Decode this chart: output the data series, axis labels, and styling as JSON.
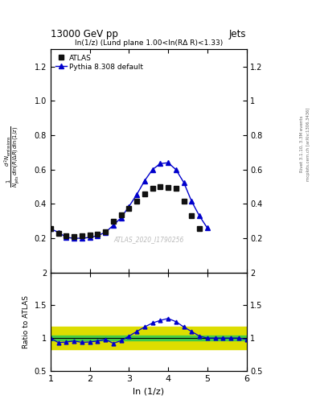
{
  "title_top": "13000 GeV pp",
  "title_right": "Jets",
  "subplot_title": "ln(1/z) (Lund plane 1.00<ln(RΔ R)<1.33)",
  "watermark": "ATLAS_2020_I1790256",
  "xlabel": "ln (1/z)",
  "ylabel_ratio": "Ratio to ATLAS",
  "right_label": "Rivet 3.1.10, 3.3M events",
  "right_label2": "mcplots.cern.ch [arXiv:1306.3436]",
  "atlas_x": [
    1.0,
    1.2,
    1.4,
    1.6,
    1.8,
    2.0,
    2.2,
    2.4,
    2.6,
    2.8,
    3.0,
    3.2,
    3.4,
    3.6,
    3.8,
    4.0,
    4.2,
    4.4,
    4.6,
    4.8
  ],
  "atlas_y": [
    0.255,
    0.23,
    0.215,
    0.21,
    0.215,
    0.22,
    0.225,
    0.24,
    0.3,
    0.335,
    0.375,
    0.415,
    0.46,
    0.49,
    0.5,
    0.495,
    0.49,
    0.415,
    0.33,
    0.255
  ],
  "pythia_x": [
    1.0,
    1.2,
    1.4,
    1.6,
    1.8,
    2.0,
    2.2,
    2.4,
    2.6,
    2.8,
    3.0,
    3.2,
    3.4,
    3.6,
    3.8,
    4.0,
    4.2,
    4.4,
    4.6,
    4.8,
    5.0,
    5.2,
    5.4,
    5.6,
    5.8,
    6.0
  ],
  "pythia_y": [
    0.255,
    0.235,
    0.205,
    0.2,
    0.2,
    0.205,
    0.215,
    0.235,
    0.275,
    0.32,
    0.385,
    0.455,
    0.535,
    0.6,
    0.635,
    0.64,
    0.6,
    0.525,
    0.415,
    0.33,
    0.26,
    0.0,
    0.0,
    0.0,
    0.0,
    0.0
  ],
  "ratio_x": [
    1.0,
    1.2,
    1.4,
    1.6,
    1.8,
    2.0,
    2.2,
    2.4,
    2.6,
    2.8,
    3.0,
    3.2,
    3.4,
    3.6,
    3.8,
    4.0,
    4.2,
    4.4,
    4.6,
    4.8,
    5.0,
    5.2,
    5.4,
    5.6,
    5.8,
    6.0
  ],
  "ratio_y": [
    1.0,
    0.93,
    0.94,
    0.955,
    0.935,
    0.94,
    0.955,
    0.98,
    0.92,
    0.96,
    1.03,
    1.1,
    1.17,
    1.23,
    1.27,
    1.3,
    1.25,
    1.17,
    1.1,
    1.03,
    1.0,
    1.0,
    1.0,
    1.0,
    1.0,
    0.98
  ],
  "band_yellow_ylo": 0.83,
  "band_yellow_yhi": 1.17,
  "band_green_ylo": 0.96,
  "band_green_yhi": 1.04,
  "ylim_main": [
    0.0,
    1.3
  ],
  "ylim_ratio": [
    0.5,
    2.0
  ],
  "xlim": [
    1.0,
    6.0
  ],
  "atlas_color": "#111111",
  "pythia_color": "#0000cc",
  "green_band_color": "#44cc44",
  "yellow_band_color": "#dddd00",
  "yticks_main": [
    0.2,
    0.4,
    0.6,
    0.8,
    1.0,
    1.2
  ],
  "yticks_ratio": [
    0.5,
    1.0,
    1.5,
    2.0
  ],
  "xticks": [
    1,
    2,
    3,
    4,
    5,
    6
  ]
}
